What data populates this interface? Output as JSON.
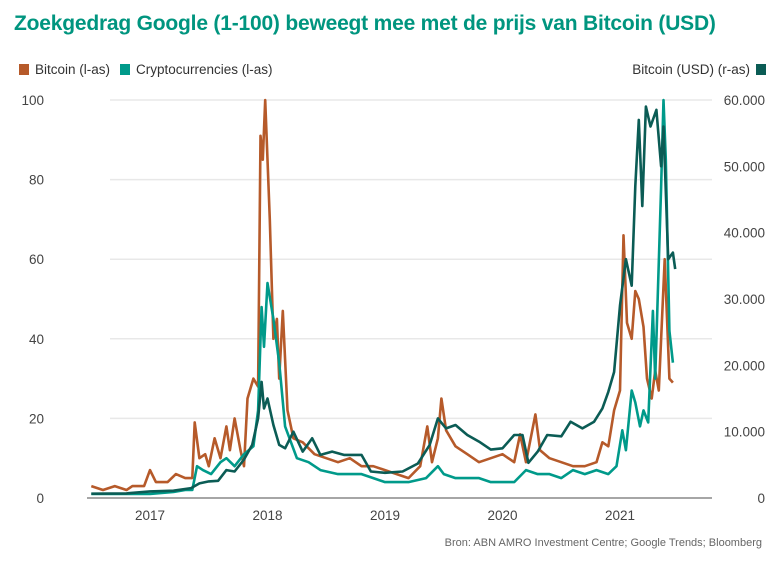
{
  "chart_data": {
    "type": "line",
    "title": "Zoekgedrag Google (1-100) beweegt mee met de prijs van Bitcoin (USD)",
    "source": "Bron: ABN AMRO Investment Centre; Google Trends; Bloomberg",
    "x_ticks": [
      "2017",
      "2018",
      "2019",
      "2020",
      "2021"
    ],
    "xlim": [
      2016.5,
      2021.5
    ],
    "y_left": {
      "lim": [
        0,
        100
      ],
      "ticks": [
        "0",
        "20",
        "40",
        "60",
        "80",
        "100"
      ]
    },
    "y_right": {
      "lim": [
        0,
        60000
      ],
      "ticks": [
        "0",
        "10.000",
        "20.000",
        "30.000",
        "40.000",
        "50.000",
        "60.000"
      ]
    },
    "grid": true,
    "legend_left": "top-left",
    "legend_right": "top-right",
    "series": [
      {
        "name": "Bitcoin (l-as)",
        "axis": "left",
        "color": "#b65a2a",
        "points": [
          [
            2016.5,
            3
          ],
          [
            2016.6,
            2
          ],
          [
            2016.7,
            3
          ],
          [
            2016.8,
            2
          ],
          [
            2016.85,
            3
          ],
          [
            2016.95,
            3
          ],
          [
            2017.0,
            7
          ],
          [
            2017.05,
            4
          ],
          [
            2017.15,
            4
          ],
          [
            2017.22,
            6
          ],
          [
            2017.3,
            5
          ],
          [
            2017.36,
            5
          ],
          [
            2017.38,
            19
          ],
          [
            2017.42,
            10
          ],
          [
            2017.47,
            11
          ],
          [
            2017.5,
            8
          ],
          [
            2017.55,
            15
          ],
          [
            2017.6,
            10
          ],
          [
            2017.65,
            18
          ],
          [
            2017.68,
            12
          ],
          [
            2017.72,
            20
          ],
          [
            2017.77,
            12
          ],
          [
            2017.8,
            8
          ],
          [
            2017.83,
            25
          ],
          [
            2017.88,
            30
          ],
          [
            2017.92,
            28
          ],
          [
            2017.94,
            91
          ],
          [
            2017.96,
            85
          ],
          [
            2017.98,
            100
          ],
          [
            2018.02,
            70
          ],
          [
            2018.05,
            40
          ],
          [
            2018.08,
            45
          ],
          [
            2018.1,
            30
          ],
          [
            2018.13,
            47
          ],
          [
            2018.17,
            22
          ],
          [
            2018.22,
            15
          ],
          [
            2018.3,
            14
          ],
          [
            2018.4,
            11
          ],
          [
            2018.5,
            10
          ],
          [
            2018.6,
            9
          ],
          [
            2018.7,
            10
          ],
          [
            2018.8,
            8
          ],
          [
            2018.9,
            8
          ],
          [
            2019.0,
            7
          ],
          [
            2019.1,
            6
          ],
          [
            2019.2,
            5
          ],
          [
            2019.3,
            8
          ],
          [
            2019.36,
            18
          ],
          [
            2019.4,
            9
          ],
          [
            2019.45,
            15
          ],
          [
            2019.48,
            25
          ],
          [
            2019.52,
            17
          ],
          [
            2019.6,
            13
          ],
          [
            2019.7,
            11
          ],
          [
            2019.8,
            9
          ],
          [
            2019.9,
            10
          ],
          [
            2020.0,
            11
          ],
          [
            2020.1,
            9
          ],
          [
            2020.15,
            16
          ],
          [
            2020.2,
            9
          ],
          [
            2020.28,
            21
          ],
          [
            2020.32,
            12
          ],
          [
            2020.4,
            10
          ],
          [
            2020.5,
            9
          ],
          [
            2020.6,
            8
          ],
          [
            2020.7,
            8
          ],
          [
            2020.8,
            9
          ],
          [
            2020.85,
            14
          ],
          [
            2020.9,
            13
          ],
          [
            2020.95,
            22
          ],
          [
            2021.0,
            27
          ],
          [
            2021.03,
            66
          ],
          [
            2021.06,
            44
          ],
          [
            2021.1,
            40
          ],
          [
            2021.13,
            52
          ],
          [
            2021.16,
            50
          ],
          [
            2021.2,
            43
          ],
          [
            2021.23,
            30
          ],
          [
            2021.27,
            25
          ],
          [
            2021.3,
            32
          ],
          [
            2021.33,
            27
          ],
          [
            2021.38,
            60
          ],
          [
            2021.42,
            30
          ],
          [
            2021.45,
            29
          ]
        ]
      },
      {
        "name": "Cryptocurrencies (l-as)",
        "axis": "left",
        "color": "#009a8a",
        "points": [
          [
            2016.5,
            1
          ],
          [
            2016.8,
            1
          ],
          [
            2017.0,
            1
          ],
          [
            2017.2,
            1.5
          ],
          [
            2017.3,
            2
          ],
          [
            2017.36,
            2
          ],
          [
            2017.4,
            8
          ],
          [
            2017.45,
            7
          ],
          [
            2017.52,
            6
          ],
          [
            2017.6,
            9
          ],
          [
            2017.65,
            10
          ],
          [
            2017.72,
            8
          ],
          [
            2017.8,
            11
          ],
          [
            2017.88,
            13
          ],
          [
            2017.92,
            22
          ],
          [
            2017.95,
            48
          ],
          [
            2017.97,
            38
          ],
          [
            2018.0,
            54
          ],
          [
            2018.05,
            45
          ],
          [
            2018.1,
            34
          ],
          [
            2018.15,
            18
          ],
          [
            2018.25,
            10
          ],
          [
            2018.35,
            9
          ],
          [
            2018.45,
            7
          ],
          [
            2018.6,
            6
          ],
          [
            2018.8,
            6
          ],
          [
            2018.9,
            5
          ],
          [
            2019.0,
            4
          ],
          [
            2019.2,
            4
          ],
          [
            2019.35,
            5
          ],
          [
            2019.45,
            8
          ],
          [
            2019.5,
            6
          ],
          [
            2019.6,
            5
          ],
          [
            2019.8,
            5
          ],
          [
            2019.9,
            4
          ],
          [
            2020.1,
            4
          ],
          [
            2020.2,
            7
          ],
          [
            2020.3,
            6
          ],
          [
            2020.4,
            6
          ],
          [
            2020.5,
            5
          ],
          [
            2020.6,
            7
          ],
          [
            2020.7,
            6
          ],
          [
            2020.8,
            7
          ],
          [
            2020.9,
            6
          ],
          [
            2020.97,
            8
          ],
          [
            2021.02,
            17
          ],
          [
            2021.05,
            12
          ],
          [
            2021.1,
            27
          ],
          [
            2021.13,
            24
          ],
          [
            2021.17,
            18
          ],
          [
            2021.2,
            22
          ],
          [
            2021.24,
            19
          ],
          [
            2021.28,
            47
          ],
          [
            2021.3,
            30
          ],
          [
            2021.35,
            78
          ],
          [
            2021.37,
            100
          ],
          [
            2021.39,
            85
          ],
          [
            2021.42,
            42
          ],
          [
            2021.45,
            34
          ]
        ]
      },
      {
        "name": "Bitcoin (USD) (r-as)",
        "axis": "right",
        "color": "#0b5c55",
        "points": [
          [
            2016.5,
            650
          ],
          [
            2016.8,
            700
          ],
          [
            2017.0,
            1000
          ],
          [
            2017.2,
            1100
          ],
          [
            2017.35,
            1500
          ],
          [
            2017.42,
            2200
          ],
          [
            2017.5,
            2500
          ],
          [
            2017.58,
            2600
          ],
          [
            2017.65,
            4200
          ],
          [
            2017.72,
            4000
          ],
          [
            2017.8,
            5800
          ],
          [
            2017.87,
            8000
          ],
          [
            2017.92,
            12000
          ],
          [
            2017.95,
            17500
          ],
          [
            2017.97,
            13500
          ],
          [
            2018.0,
            15000
          ],
          [
            2018.05,
            11000
          ],
          [
            2018.1,
            8000
          ],
          [
            2018.15,
            7500
          ],
          [
            2018.22,
            10000
          ],
          [
            2018.3,
            7000
          ],
          [
            2018.38,
            9000
          ],
          [
            2018.45,
            6500
          ],
          [
            2018.55,
            7000
          ],
          [
            2018.65,
            6500
          ],
          [
            2018.8,
            6500
          ],
          [
            2018.88,
            4000
          ],
          [
            2019.0,
            3800
          ],
          [
            2019.15,
            4000
          ],
          [
            2019.28,
            5200
          ],
          [
            2019.38,
            8000
          ],
          [
            2019.45,
            12000
          ],
          [
            2019.52,
            10500
          ],
          [
            2019.6,
            11000
          ],
          [
            2019.7,
            9500
          ],
          [
            2019.8,
            8500
          ],
          [
            2019.9,
            7300
          ],
          [
            2020.0,
            7500
          ],
          [
            2020.1,
            9500
          ],
          [
            2020.17,
            9500
          ],
          [
            2020.22,
            5300
          ],
          [
            2020.3,
            7000
          ],
          [
            2020.38,
            9500
          ],
          [
            2020.5,
            9300
          ],
          [
            2020.58,
            11500
          ],
          [
            2020.68,
            10500
          ],
          [
            2020.78,
            11500
          ],
          [
            2020.85,
            13500
          ],
          [
            2020.9,
            16000
          ],
          [
            2020.95,
            19000
          ],
          [
            2021.0,
            29000
          ],
          [
            2021.05,
            36000
          ],
          [
            2021.1,
            32000
          ],
          [
            2021.13,
            47000
          ],
          [
            2021.16,
            57000
          ],
          [
            2021.19,
            44000
          ],
          [
            2021.22,
            59000
          ],
          [
            2021.26,
            56000
          ],
          [
            2021.31,
            58500
          ],
          [
            2021.35,
            50000
          ],
          [
            2021.37,
            56000
          ],
          [
            2021.41,
            36000
          ],
          [
            2021.45,
            37000
          ],
          [
            2021.47,
            34500
          ]
        ]
      }
    ]
  }
}
